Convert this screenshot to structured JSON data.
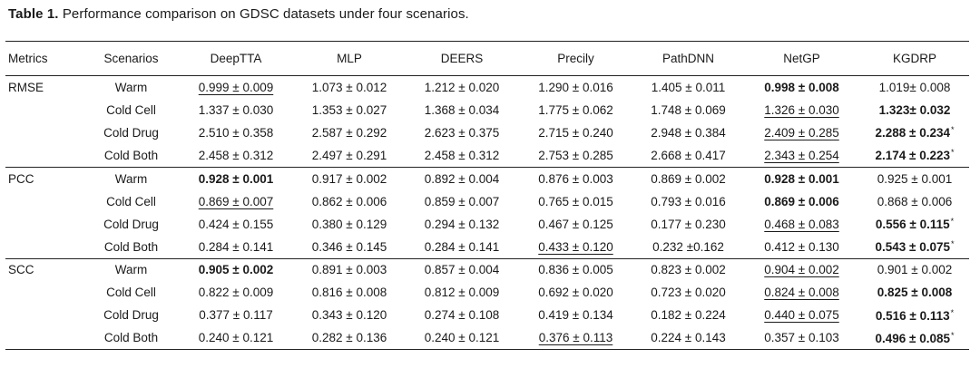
{
  "caption": {
    "label": "Table 1.",
    "text": "Performance comparison on GDSC datasets under four scenarios."
  },
  "columns": [
    "Metrics",
    "Scenarios",
    "DeepTTA",
    "MLP",
    "DEERS",
    "Precily",
    "PathDNN",
    "NetGP",
    "KGDRP"
  ],
  "rows": [
    {
      "metric": "RMSE",
      "scenario": "Warm",
      "cells": [
        {
          "v": "0.999 ± 0.009",
          "s": "u"
        },
        {
          "v": "1.073 ± 0.012"
        },
        {
          "v": "1.212 ± 0.020"
        },
        {
          "v": "1.290 ± 0.016"
        },
        {
          "v": "1.405 ± 0.011"
        },
        {
          "v": "0.998 ± 0.008",
          "s": "b"
        },
        {
          "v": "1.019± 0.008"
        }
      ]
    },
    {
      "metric": "",
      "scenario": "Cold Cell",
      "cells": [
        {
          "v": "1.337 ± 0.030"
        },
        {
          "v": "1.353 ± 0.027"
        },
        {
          "v": "1.368 ± 0.034"
        },
        {
          "v": "1.775 ± 0.062"
        },
        {
          "v": "1.748 ± 0.069"
        },
        {
          "v": "1.326 ± 0.030",
          "s": "u"
        },
        {
          "v": "1.323± 0.032",
          "s": "b"
        }
      ]
    },
    {
      "metric": "",
      "scenario": "Cold Drug",
      "cells": [
        {
          "v": "2.510 ± 0.358"
        },
        {
          "v": "2.587 ± 0.292"
        },
        {
          "v": "2.623 ± 0.375"
        },
        {
          "v": "2.715 ± 0.240"
        },
        {
          "v": "2.948 ± 0.384"
        },
        {
          "v": "2.409 ± 0.285",
          "s": "u"
        },
        {
          "v": "2.288 ± 0.234",
          "s": "b",
          "star": "*"
        }
      ]
    },
    {
      "metric": "",
      "scenario": "Cold Both",
      "cells": [
        {
          "v": "2.458 ± 0.312"
        },
        {
          "v": "2.497 ± 0.291"
        },
        {
          "v": "2.458 ± 0.312"
        },
        {
          "v": "2.753 ± 0.285"
        },
        {
          "v": "2.668 ± 0.417"
        },
        {
          "v": "2.343 ± 0.254",
          "s": "u"
        },
        {
          "v": "2.174 ± 0.223",
          "s": "b",
          "star": "*"
        }
      ]
    },
    {
      "metric": "PCC",
      "scenario": "Warm",
      "cells": [
        {
          "v": "0.928 ± 0.001",
          "s": "b"
        },
        {
          "v": "0.917 ± 0.002"
        },
        {
          "v": "0.892 ± 0.004"
        },
        {
          "v": "0.876 ± 0.003"
        },
        {
          "v": "0.869 ± 0.002"
        },
        {
          "v": "0.928 ± 0.001",
          "s": "b"
        },
        {
          "v": "0.925 ± 0.001"
        }
      ]
    },
    {
      "metric": "",
      "scenario": "Cold Cell",
      "cells": [
        {
          "v": "0.869 ± 0.007",
          "s": "u"
        },
        {
          "v": "0.862 ± 0.006"
        },
        {
          "v": "0.859 ± 0.007"
        },
        {
          "v": "0.765 ± 0.015"
        },
        {
          "v": "0.793 ± 0.016"
        },
        {
          "v": "0.869 ± 0.006",
          "s": "b"
        },
        {
          "v": "0.868 ± 0.006"
        }
      ]
    },
    {
      "metric": "",
      "scenario": "Cold Drug",
      "cells": [
        {
          "v": "0.424 ± 0.155"
        },
        {
          "v": "0.380 ± 0.129"
        },
        {
          "v": "0.294 ± 0.132"
        },
        {
          "v": "0.467 ± 0.125"
        },
        {
          "v": "0.177 ± 0.230"
        },
        {
          "v": "0.468 ± 0.083",
          "s": "u"
        },
        {
          "v": "0.556 ± 0.115",
          "s": "b",
          "star": "*"
        }
      ]
    },
    {
      "metric": "",
      "scenario": "Cold Both",
      "cells": [
        {
          "v": "0.284 ± 0.141"
        },
        {
          "v": "0.346 ± 0.145"
        },
        {
          "v": "0.284 ± 0.141"
        },
        {
          "v": "0.433 ± 0.120",
          "s": "u"
        },
        {
          "v": "0.232 ±0.162"
        },
        {
          "v": "0.412 ± 0.130"
        },
        {
          "v": "0.543 ± 0.075",
          "s": "b",
          "star": "*"
        }
      ]
    },
    {
      "metric": "SCC",
      "scenario": "Warm",
      "cells": [
        {
          "v": "0.905 ± 0.002",
          "s": "b"
        },
        {
          "v": "0.891 ± 0.003"
        },
        {
          "v": "0.857 ± 0.004"
        },
        {
          "v": "0.836 ± 0.005"
        },
        {
          "v": "0.823 ± 0.002"
        },
        {
          "v": "0.904 ± 0.002",
          "s": "u"
        },
        {
          "v": "0.901 ± 0.002"
        }
      ]
    },
    {
      "metric": "",
      "scenario": "Cold Cell",
      "cells": [
        {
          "v": "0.822 ± 0.009"
        },
        {
          "v": "0.816 ± 0.008"
        },
        {
          "v": "0.812 ± 0.009"
        },
        {
          "v": "0.692 ± 0.020"
        },
        {
          "v": "0.723 ± 0.020"
        },
        {
          "v": "0.824 ± 0.008",
          "s": "u"
        },
        {
          "v": "0.825 ± 0.008",
          "s": "b"
        }
      ]
    },
    {
      "metric": "",
      "scenario": "Cold Drug",
      "cells": [
        {
          "v": "0.377 ± 0.117"
        },
        {
          "v": "0.343 ± 0.120"
        },
        {
          "v": "0.274 ± 0.108"
        },
        {
          "v": "0.419 ± 0.134"
        },
        {
          "v": "0.182 ± 0.224"
        },
        {
          "v": "0.440 ± 0.075",
          "s": "u"
        },
        {
          "v": "0.516 ± 0.113",
          "s": "b",
          "star": "*"
        }
      ]
    },
    {
      "metric": "",
      "scenario": "Cold Both",
      "cells": [
        {
          "v": "0.240 ± 0.121"
        },
        {
          "v": "0.282 ± 0.136"
        },
        {
          "v": "0.240 ± 0.121"
        },
        {
          "v": "0.376 ± 0.113",
          "s": "u"
        },
        {
          "v": "0.224 ± 0.143"
        },
        {
          "v": "0.357 ± 0.103"
        },
        {
          "v": "0.496 ± 0.085",
          "s": "b",
          "star": "*"
        }
      ]
    }
  ]
}
